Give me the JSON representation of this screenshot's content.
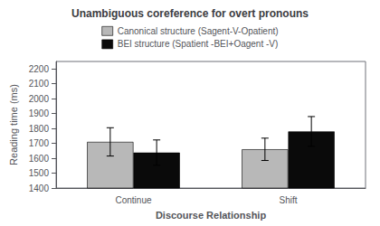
{
  "chart_data": {
    "type": "bar",
    "title": "Unambiguous coreference for overt pronouns",
    "xlabel": "Discourse Relationship",
    "ylabel": "Reading time (ms)",
    "categories": [
      "Continue",
      "Shift"
    ],
    "series": [
      {
        "name": "Canonical structure (Sagent-V-Opatient)",
        "color": "#b8b8b8",
        "values": [
          1710,
          1660
        ],
        "errors": [
          95,
          75
        ]
      },
      {
        "name": "BEI structure (Spatient -BEI+Oagent -V)",
        "color": "#0a0a0a",
        "values": [
          1638,
          1780
        ],
        "errors": [
          85,
          100
        ]
      }
    ],
    "ylim": [
      1400,
      2250
    ],
    "yticks": [
      1400,
      1500,
      1600,
      1700,
      1800,
      1900,
      2000,
      2100,
      2200
    ],
    "grid": false,
    "legend": "top"
  }
}
